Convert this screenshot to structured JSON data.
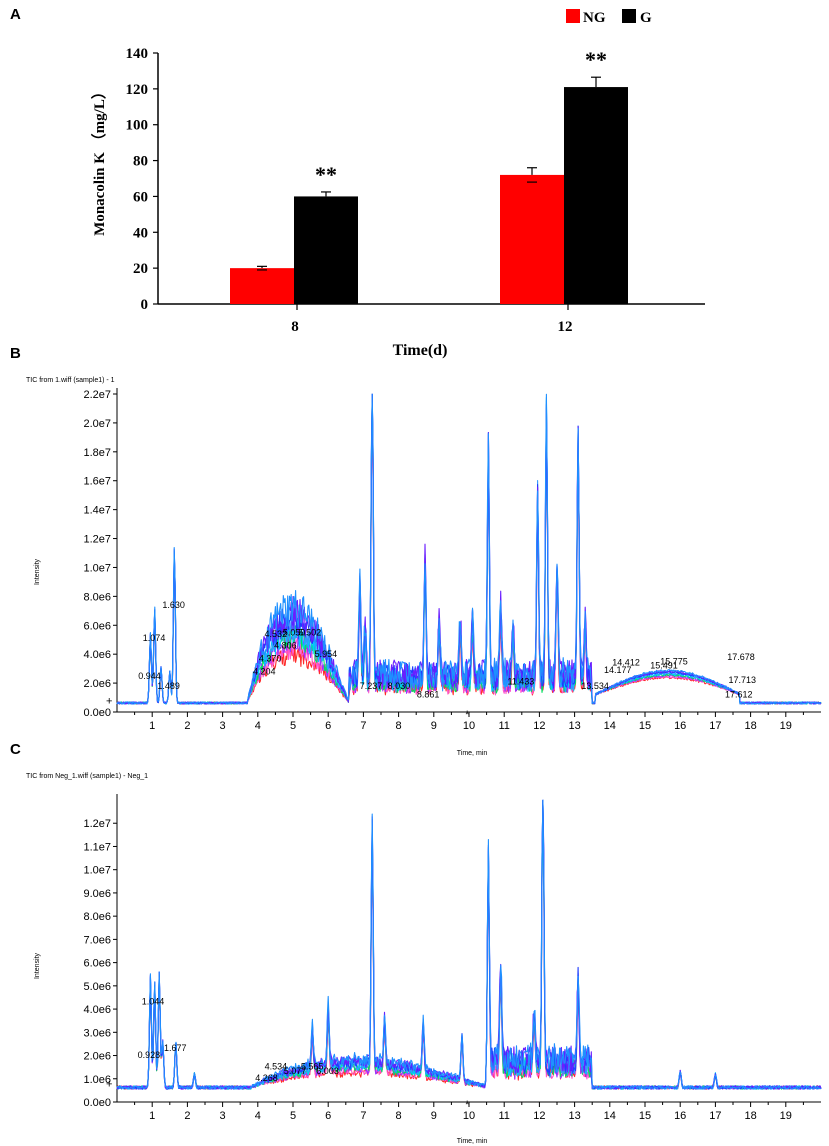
{
  "panels": {
    "a": "A",
    "b": "B",
    "c": "C"
  },
  "chart_data": [
    {
      "type": "bar",
      "categories": [
        "8",
        "12"
      ],
      "series": [
        {
          "name": "NG",
          "color": "#ff0000",
          "values": [
            20,
            72
          ],
          "errors": [
            1,
            4
          ]
        },
        {
          "name": "G",
          "color": "#000000",
          "values": [
            60,
            121
          ],
          "errors": [
            2.5,
            5.5
          ]
        }
      ],
      "annotations": [
        "**",
        "**"
      ],
      "xlabel": "Time(d)",
      "ylabel": "Monacolin K （mg/L）",
      "ylim": [
        0,
        140
      ],
      "yticks": [
        "0",
        "20",
        "40",
        "60",
        "80",
        "100",
        "120",
        "140"
      ],
      "legend": "top-right"
    },
    {
      "type": "line",
      "title": "TIC from 1.wiff (sample1) - 1",
      "xlabel": "Time, min",
      "ylabel": "Intensity",
      "xlim": [
        0,
        20
      ],
      "ylim": [
        0,
        22000000
      ],
      "xticks": [
        "1",
        "2",
        "3",
        "4",
        "5",
        "6",
        "7",
        "8",
        "9",
        "10",
        "11",
        "12",
        "13",
        "14",
        "15",
        "16",
        "17",
        "18",
        "19"
      ],
      "yticks": [
        "0.0e0",
        "2.0e6",
        "4.0e6",
        "6.0e6",
        "8.0e6",
        "1.0e7",
        "1.2e7",
        "1.4e7",
        "1.6e7",
        "1.8e7",
        "2.0e7",
        "2.2e7"
      ],
      "peak_labels": [
        {
          "t": 0.944,
          "i": 2300000,
          "label": "0.944"
        },
        {
          "t": 1.074,
          "i": 4900000,
          "label": "1.074"
        },
        {
          "t": 1.63,
          "i": 7200000,
          "label": "1.630"
        },
        {
          "t": 1.489,
          "i": 1600000,
          "label": "1.489"
        },
        {
          "t": 4.204,
          "i": 2600000,
          "label": "4.204"
        },
        {
          "t": 4.37,
          "i": 3500000,
          "label": "4.370"
        },
        {
          "t": 4.806,
          "i": 4400000,
          "label": "4.806"
        },
        {
          "t": 4.532,
          "i": 5200000,
          "label": "4.532"
        },
        {
          "t": 5.05,
          "i": 5300000,
          "label": "5.050"
        },
        {
          "t": 5.502,
          "i": 5300000,
          "label": "5.502"
        },
        {
          "t": 5.954,
          "i": 3800000,
          "label": "5.954"
        },
        {
          "t": 7.237,
          "i": 1600000,
          "label": "7.237"
        },
        {
          "t": 8.03,
          "i": 1600000,
          "label": "8.030"
        },
        {
          "t": 8.861,
          "i": 1000000,
          "label": "8.861"
        },
        {
          "t": 11.433,
          "i": 1900000,
          "label": "11.433"
        },
        {
          "t": 13.534,
          "i": 1600000,
          "label": "13.534"
        },
        {
          "t": 14.177,
          "i": 2700000,
          "label": "14.177"
        },
        {
          "t": 14.412,
          "i": 3200000,
          "label": "14.412"
        },
        {
          "t": 15.491,
          "i": 3000000,
          "label": "15.491"
        },
        {
          "t": 15.775,
          "i": 3300000,
          "label": "15.775"
        },
        {
          "t": 17.678,
          "i": 3600000,
          "label": "17.678"
        },
        {
          "t": 17.713,
          "i": 2000000,
          "label": "17.713"
        },
        {
          "t": 17.612,
          "i": 1000000,
          "label": "17.612"
        }
      ],
      "peaks": [
        [
          0.95,
          4.8
        ],
        [
          1.07,
          6.6
        ],
        [
          1.25,
          2.5
        ],
        [
          1.63,
          10.8
        ],
        [
          1.5,
          2.2
        ],
        [
          6.9,
          6.4
        ],
        [
          7.25,
          22.0
        ],
        [
          7.05,
          3.5
        ],
        [
          8.75,
          8.3
        ],
        [
          9.15,
          3.8
        ],
        [
          9.75,
          4.2
        ],
        [
          10.1,
          4.0
        ],
        [
          10.55,
          16.3
        ],
        [
          10.9,
          5.0
        ],
        [
          11.25,
          3.5
        ],
        [
          11.95,
          13.3
        ],
        [
          12.2,
          19.4
        ],
        [
          12.5,
          8.2
        ],
        [
          13.1,
          17.2
        ],
        [
          13.3,
          4.0
        ]
      ],
      "hump": {
        "start": 3.7,
        "end": 6.6,
        "max": 7.5
      }
    },
    {
      "type": "line",
      "title": "TIC from Neg_1.wiff (sample1) - Neg_1",
      "xlabel": "Time, min",
      "ylabel": "Intensity",
      "xlim": [
        0,
        20
      ],
      "ylim": [
        0,
        13000000
      ],
      "xticks": [
        "1",
        "2",
        "3",
        "4",
        "5",
        "6",
        "7",
        "8",
        "9",
        "10",
        "11",
        "12",
        "13",
        "14",
        "15",
        "16",
        "17",
        "18",
        "19"
      ],
      "yticks": [
        "0.0e0",
        "1.0e6",
        "2.0e6",
        "3.0e6",
        "4.0e6",
        "5.0e6",
        "6.0e6",
        "7.0e6",
        "8.0e6",
        "9.0e6",
        "1.0e7",
        "1.1e7",
        "1.2e7"
      ],
      "peak_labels": [
        {
          "t": 0.928,
          "i": 1900000,
          "label": "0.928"
        },
        {
          "t": 1.044,
          "i": 4200000,
          "label": "1.044"
        },
        {
          "t": 1.677,
          "i": 2200000,
          "label": "1.677"
        },
        {
          "t": 4.534,
          "i": 1400000,
          "label": "4.534"
        },
        {
          "t": 4.268,
          "i": 900000,
          "label": "4.268"
        },
        {
          "t": 5.077,
          "i": 1200000,
          "label": "5.077"
        },
        {
          "t": 5.565,
          "i": 1400000,
          "label": "5.565"
        },
        {
          "t": 6.003,
          "i": 1200000,
          "label": "6.003"
        }
      ],
      "peaks": [
        [
          0.95,
          4.8
        ],
        [
          1.07,
          4.6
        ],
        [
          1.2,
          5.0
        ],
        [
          1.3,
          2.0
        ],
        [
          1.67,
          2.0
        ],
        [
          2.2,
          0.6
        ],
        [
          5.55,
          1.8
        ],
        [
          6.0,
          2.5
        ],
        [
          7.25,
          10.5
        ],
        [
          7.6,
          2.0
        ],
        [
          8.7,
          2.2
        ],
        [
          9.8,
          2.0
        ],
        [
          10.55,
          10.5
        ],
        [
          10.9,
          4.5
        ],
        [
          11.85,
          2.5
        ],
        [
          12.1,
          12.9
        ],
        [
          13.1,
          3.8
        ],
        [
          16.0,
          0.7
        ],
        [
          17.0,
          0.6
        ]
      ],
      "hump": {
        "start": 3.8,
        "end": 10.6,
        "max": 1.4
      }
    }
  ],
  "legend": {
    "ng_label": "NG",
    "g_label": "G"
  }
}
